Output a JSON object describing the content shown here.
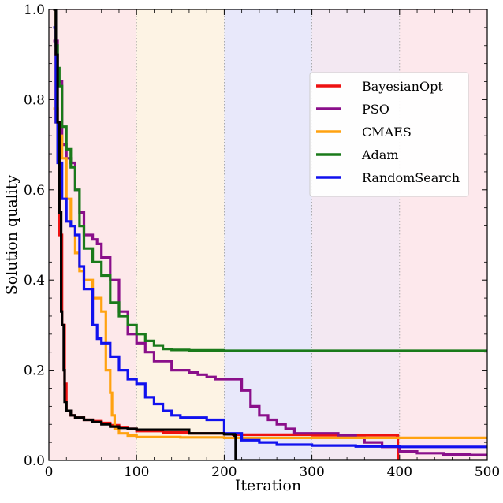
{
  "chart_data": {
    "type": "line",
    "title": "",
    "xlabel": "Iteration",
    "ylabel": "Solution quality",
    "xlim": [
      0,
      500
    ],
    "ylim": [
      0,
      1.0
    ],
    "xticks": [
      0,
      100,
      200,
      300,
      400,
      500
    ],
    "xtick_labels": [
      "0",
      "100",
      "200",
      "300",
      "400",
      "500"
    ],
    "yticks": [
      0,
      0.2,
      0.4,
      0.6,
      0.8,
      1.0
    ],
    "ytick_labels": [
      "0.0",
      "0.2",
      "0.4",
      "0.6",
      "0.8",
      "1.0"
    ],
    "grid": "x dotted",
    "legend_position": "upper-right",
    "background_bands": [
      {
        "x0": 0,
        "x1": 100,
        "color": "#fde8ea"
      },
      {
        "x0": 100,
        "x1": 200,
        "color": "#fdf3e4"
      },
      {
        "x0": 200,
        "x1": 300,
        "color": "#e8e8fa"
      },
      {
        "x0": 300,
        "x1": 400,
        "color": "#f3e8f2"
      },
      {
        "x0": 400,
        "x1": 500,
        "color": "#fde8ec"
      }
    ],
    "series": [
      {
        "name": "BayesianOpt",
        "color": "#ee1111",
        "in_legend": true,
        "x": [
          5,
          8,
          12,
          15,
          18,
          20,
          25,
          30,
          40,
          50,
          60,
          70,
          80,
          90,
          100,
          130,
          160,
          200,
          210,
          300,
          397,
          398
        ],
        "y": [
          1.0,
          0.75,
          0.5,
          0.3,
          0.17,
          0.11,
          0.1,
          0.095,
          0.09,
          0.087,
          0.083,
          0.078,
          0.074,
          0.07,
          0.065,
          0.062,
          0.06,
          0.058,
          0.057,
          0.056,
          0.055,
          0.0
        ]
      },
      {
        "name": "PSO",
        "color": "#8a0f8a",
        "in_legend": true,
        "x": [
          5,
          10,
          15,
          20,
          25,
          30,
          35,
          40,
          50,
          55,
          60,
          70,
          80,
          90,
          100,
          110,
          120,
          140,
          150,
          160,
          170,
          180,
          190,
          200,
          220,
          230,
          240,
          250,
          260,
          270,
          280,
          300,
          330,
          350,
          360,
          380,
          400,
          420,
          450,
          480,
          500
        ],
        "y": [
          0.93,
          0.84,
          0.7,
          0.67,
          0.66,
          0.6,
          0.55,
          0.5,
          0.49,
          0.48,
          0.45,
          0.4,
          0.33,
          0.28,
          0.26,
          0.24,
          0.22,
          0.2,
          0.2,
          0.195,
          0.19,
          0.185,
          0.18,
          0.18,
          0.155,
          0.12,
          0.1,
          0.09,
          0.08,
          0.07,
          0.06,
          0.06,
          0.055,
          0.05,
          0.04,
          0.03,
          0.02,
          0.016,
          0.013,
          0.012,
          0.012
        ]
      },
      {
        "name": "CMAES",
        "color": "#ffa210",
        "in_legend": true,
        "x": [
          5,
          10,
          15,
          20,
          25,
          30,
          35,
          40,
          50,
          60,
          65,
          70,
          72,
          75,
          80,
          90,
          100,
          150,
          200,
          300,
          400,
          500
        ],
        "y": [
          0.78,
          0.72,
          0.67,
          0.58,
          0.52,
          0.46,
          0.42,
          0.4,
          0.36,
          0.33,
          0.2,
          0.15,
          0.1,
          0.07,
          0.06,
          0.055,
          0.052,
          0.051,
          0.05,
          0.05,
          0.05,
          0.05
        ]
      },
      {
        "name": "Adam",
        "color": "#1a7a1a",
        "in_legend": true,
        "x": [
          5,
          8,
          10,
          12,
          15,
          20,
          25,
          30,
          35,
          40,
          50,
          60,
          70,
          80,
          90,
          100,
          110,
          120,
          130,
          140,
          160,
          200,
          300,
          400,
          500
        ],
        "y": [
          1.0,
          0.92,
          0.87,
          0.83,
          0.74,
          0.69,
          0.65,
          0.6,
          0.52,
          0.47,
          0.44,
          0.41,
          0.35,
          0.32,
          0.3,
          0.28,
          0.265,
          0.255,
          0.247,
          0.245,
          0.244,
          0.243,
          0.243,
          0.243,
          0.243
        ]
      },
      {
        "name": "RandomSearch",
        "color": "#1111ee",
        "in_legend": true,
        "x": [
          5,
          8,
          10,
          15,
          20,
          25,
          30,
          35,
          40,
          50,
          55,
          60,
          70,
          80,
          90,
          100,
          110,
          120,
          130,
          140,
          150,
          180,
          200,
          220,
          240,
          260,
          300,
          350,
          400,
          500
        ],
        "y": [
          0.96,
          0.75,
          0.66,
          0.58,
          0.53,
          0.52,
          0.5,
          0.43,
          0.38,
          0.3,
          0.27,
          0.26,
          0.23,
          0.2,
          0.18,
          0.17,
          0.14,
          0.125,
          0.11,
          0.1,
          0.095,
          0.09,
          0.06,
          0.045,
          0.04,
          0.035,
          0.033,
          0.031,
          0.03,
          0.03
        ]
      },
      {
        "name": "",
        "color": "#000000",
        "in_legend": false,
        "x": [
          5,
          8,
          10,
          12,
          14,
          15,
          17,
          18,
          20,
          25,
          30,
          40,
          50,
          60,
          70,
          80,
          90,
          100,
          120,
          140,
          158,
          160,
          200,
          212,
          213,
          300,
          400,
          500
        ],
        "y": [
          1.0,
          0.9,
          0.75,
          0.55,
          0.33,
          0.3,
          0.2,
          0.13,
          0.11,
          0.1,
          0.095,
          0.09,
          0.085,
          0.08,
          0.075,
          0.072,
          0.07,
          0.068,
          0.068,
          0.068,
          0.068,
          0.06,
          0.058,
          0.055,
          0.0,
          0.0,
          0.0,
          0.0
        ]
      }
    ]
  }
}
